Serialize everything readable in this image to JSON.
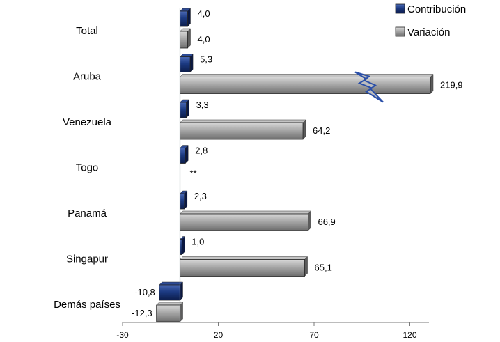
{
  "chart_data": {
    "type": "bar",
    "orientation": "horizontal",
    "categories": [
      "Total",
      "Aruba",
      "Venezuela",
      "Togo",
      "Panamá",
      "Singapur",
      "Demás países"
    ],
    "series": [
      {
        "name": "Contribución",
        "values": [
          4.0,
          5.3,
          3.3,
          2.8,
          2.3,
          1.0,
          -10.8
        ],
        "labels": [
          "4,0",
          "5,3",
          "3,3",
          "2,8",
          "2,3",
          "1,0",
          "-10,8"
        ],
        "color": "#1f3a7a"
      },
      {
        "name": "Variación",
        "values": [
          4.0,
          219.9,
          64.2,
          null,
          66.9,
          65.1,
          -12.3
        ],
        "labels": [
          "4,0",
          "219,9",
          "64,2",
          "**",
          "66,9",
          "65,1",
          "-12,3"
        ],
        "color": "#a6a6a6"
      }
    ],
    "xlim": [
      -30,
      130
    ],
    "xticks": [
      -30,
      20,
      70,
      120
    ],
    "xtick_labels": [
      "-30",
      "20",
      "70",
      "120"
    ],
    "axis_break": {
      "category": "Aruba",
      "series": "Variación"
    },
    "legend": {
      "position": "top-right",
      "entries": [
        "Contribución",
        "Variación"
      ]
    },
    "title": "",
    "xlabel": "",
    "ylabel": ""
  }
}
